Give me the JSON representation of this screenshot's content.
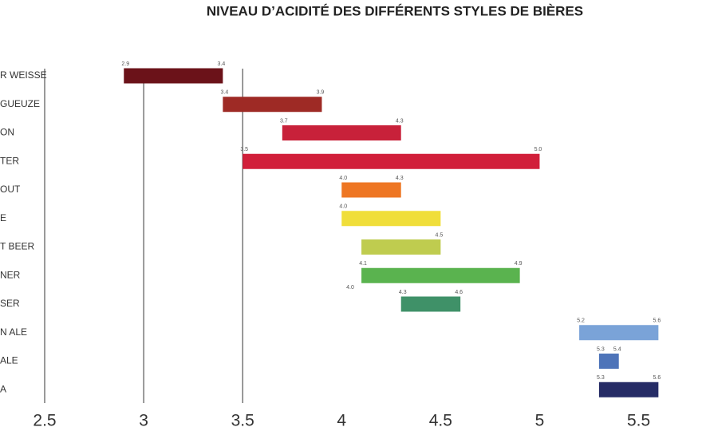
{
  "chart_data": {
    "type": "range-bar",
    "title": "NIVEAU D’ACIDITÉ DES DIFFÉRENTS STYLES DE BIÈRES",
    "categories": [
      "R WEISSE",
      "GUEUZE",
      "ON",
      "TER",
      "OUT",
      "E",
      "T BEER",
      "NER",
      "SER",
      "N ALE",
      "ALE",
      "A"
    ],
    "low": [
      2.9,
      3.4,
      3.7,
      3.5,
      4.0,
      4.0,
      4.1,
      4.1,
      4.3,
      5.2,
      5.3,
      5.3
    ],
    "high": [
      3.4,
      3.9,
      4.3,
      5.0,
      4.3,
      4.5,
      4.5,
      4.9,
      4.6,
      5.6,
      5.4,
      5.6
    ],
    "low_labels": [
      "2.9",
      "3.4",
      "3.7",
      "3.5",
      "4.0",
      "4.0",
      null,
      "4.1",
      "4.3",
      "5.2",
      "5.3",
      "5.3"
    ],
    "high_labels": [
      "3.4",
      "3.9",
      "4.3",
      "5.0",
      "4.3",
      null,
      "4.5",
      "4.9",
      "4.6",
      "5.6",
      "5.4",
      "5.6"
    ],
    "colors": [
      "#6b1219",
      "#9e2a25",
      "#c8213a",
      "#d11f3a",
      "#ee7623",
      "#f0de3a",
      "#bfcc4f",
      "#5ab34f",
      "#3f9168",
      "#7aa3d8",
      "#4e74b9",
      "#262c66"
    ],
    "annotations": [
      "4.0"
    ],
    "xlim": [
      2.5,
      5.8
    ],
    "xticks": [
      2.5,
      3,
      3.5,
      4,
      4.5,
      5,
      5.5
    ],
    "reference_lines": [
      3,
      3.5
    ]
  }
}
